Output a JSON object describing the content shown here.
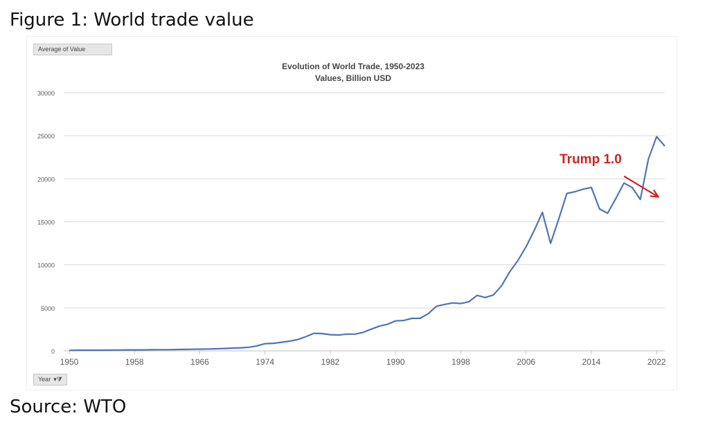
{
  "figure": {
    "caption": "Figure 1: World trade value",
    "source": "Source: WTO"
  },
  "pivot": {
    "value_field": "Average of Value",
    "axis_field": "Year"
  },
  "chart_data": {
    "type": "line",
    "title": "Evolution of World Trade, 1950-2023",
    "subtitle": "Values, Billion USD",
    "xlabel": "",
    "ylabel": "",
    "xlim": [
      1950,
      2023
    ],
    "ylim": [
      0,
      30000
    ],
    "x_ticks": [
      1950,
      1958,
      1966,
      1974,
      1982,
      1990,
      1998,
      2006,
      2014,
      2022
    ],
    "y_ticks": [
      0,
      5000,
      10000,
      15000,
      20000,
      25000,
      30000
    ],
    "grid": "horizontal",
    "series": [
      {
        "color": "#4e74b8",
        "x": [
          1950,
          1951,
          1952,
          1953,
          1954,
          1955,
          1956,
          1957,
          1958,
          1959,
          1960,
          1961,
          1962,
          1963,
          1964,
          1965,
          1966,
          1967,
          1968,
          1969,
          1970,
          1971,
          1972,
          1973,
          1974,
          1975,
          1976,
          1977,
          1978,
          1979,
          1980,
          1981,
          1982,
          1983,
          1984,
          1985,
          1986,
          1987,
          1988,
          1989,
          1990,
          1991,
          1992,
          1993,
          1994,
          1995,
          1996,
          1997,
          1998,
          1999,
          2000,
          2001,
          2002,
          2003,
          2004,
          2005,
          2006,
          2007,
          2008,
          2009,
          2010,
          2011,
          2012,
          2013,
          2014,
          2015,
          2016,
          2017,
          2018,
          2019,
          2020,
          2021,
          2022,
          2023
        ],
        "y": [
          60,
          80,
          80,
          80,
          80,
          90,
          100,
          110,
          110,
          115,
          130,
          135,
          140,
          155,
          170,
          185,
          200,
          215,
          240,
          270,
          320,
          350,
          420,
          580,
          840,
          880,
          1000,
          1130,
          1310,
          1650,
          2040,
          2010,
          1880,
          1840,
          1950,
          1950,
          2140,
          2520,
          2870,
          3090,
          3480,
          3530,
          3780,
          3780,
          4320,
          5170,
          5400,
          5570,
          5500,
          5720,
          6450,
          6200,
          6500,
          7580,
          9200,
          10500,
          12100,
          14000,
          16100,
          12500,
          15300,
          18300,
          18500,
          18800,
          19000,
          16500,
          16000,
          17700,
          19500,
          19000,
          17600,
          22300,
          24900,
          23800
        ]
      }
    ],
    "annotations": [
      {
        "text": "Trump 1.0",
        "color": "#d42020",
        "arrow_from_x": 2018.0,
        "arrow_from_y": 20300,
        "arrow_to_x": 2022.2,
        "arrow_to_y": 17900
      }
    ]
  }
}
